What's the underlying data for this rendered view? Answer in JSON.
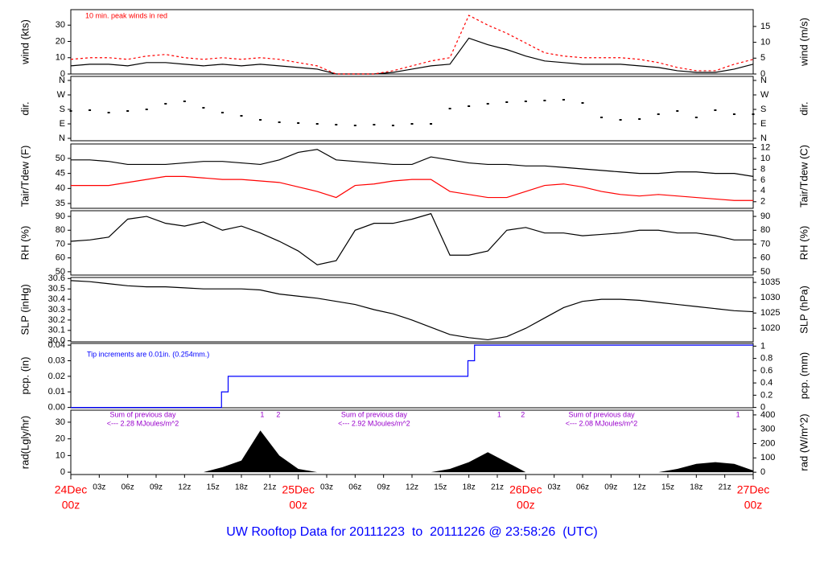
{
  "title": "UW Rooftop Data for 20111223  to  20111226 @ 23:58:26  (UTC)",
  "x": [
    0,
    2,
    4,
    6,
    8,
    10,
    12,
    14,
    16,
    18,
    20,
    22,
    24,
    26,
    28,
    30,
    32,
    34,
    36,
    38,
    40,
    42,
    44,
    46,
    48,
    50,
    52,
    54,
    56,
    58,
    60,
    62,
    64,
    66,
    68,
    70,
    72
  ],
  "xlim": [
    0,
    72
  ],
  "xticks": [
    {
      "value": 3,
      "label": "03z"
    },
    {
      "value": 6,
      "label": "06z"
    },
    {
      "value": 9,
      "label": "09z"
    },
    {
      "value": 12,
      "label": "12z"
    },
    {
      "value": 15,
      "label": "15z"
    },
    {
      "value": 18,
      "label": "18z"
    },
    {
      "value": 21,
      "label": "21z"
    },
    {
      "value": 27,
      "label": "03z"
    },
    {
      "value": 30,
      "label": "06z"
    },
    {
      "value": 33,
      "label": "09z"
    },
    {
      "value": 36,
      "label": "12z"
    },
    {
      "value": 39,
      "label": "15z"
    },
    {
      "value": 42,
      "label": "18z"
    },
    {
      "value": 45,
      "label": "21z"
    },
    {
      "value": 51,
      "label": "03z"
    },
    {
      "value": 54,
      "label": "06z"
    },
    {
      "value": 57,
      "label": "09z"
    },
    {
      "value": 60,
      "label": "12z"
    },
    {
      "value": 63,
      "label": "15z"
    },
    {
      "value": 66,
      "label": "18z"
    },
    {
      "value": 69,
      "label": "21z"
    }
  ],
  "day_labels": [
    {
      "value": 0,
      "date": "24Dec",
      "time": "00z"
    },
    {
      "value": 24,
      "date": "25Dec",
      "time": "00z"
    },
    {
      "value": 48,
      "date": "26Dec",
      "time": "00z"
    },
    {
      "value": 72,
      "date": "27Dec",
      "time": "00z"
    }
  ],
  "chart_data": [
    {
      "type": "line",
      "ylabel": "wind (kts)",
      "y2label": "wind (m/s)",
      "annotation": "10 min. peak winds in red",
      "ylim": [
        0,
        39.5
      ],
      "yticks": [
        0,
        10,
        20,
        30
      ],
      "y2lim": [
        0,
        20.3
      ],
      "y2ticks": [
        0,
        5,
        10,
        15
      ],
      "series": [
        {
          "name": "wind",
          "color": "#000000",
          "values": [
            5,
            6,
            6,
            5,
            7,
            7,
            6,
            5,
            6,
            5,
            6,
            5,
            4,
            3,
            0,
            0,
            0,
            1,
            3,
            5,
            6,
            22,
            18,
            15,
            11,
            8,
            7,
            6,
            6,
            6,
            5,
            4,
            2,
            1,
            1,
            3,
            6
          ]
        },
        {
          "name": "peak",
          "color": "#ff0000",
          "values": [
            9,
            10,
            10,
            9,
            11,
            12,
            10,
            9,
            10,
            9,
            10,
            9,
            7,
            5,
            0,
            0,
            0,
            2,
            5,
            8,
            10,
            36,
            30,
            25,
            19,
            13,
            11,
            10,
            10,
            10,
            9,
            7,
            4,
            2,
            2,
            6,
            9
          ]
        }
      ]
    },
    {
      "type": "scatter",
      "ylabel": "dir.",
      "y2label": "dir.",
      "ylim": [
        -15,
        385
      ],
      "yticks": [
        {
          "value": 0,
          "label": "N"
        },
        {
          "value": 90,
          "label": "E"
        },
        {
          "value": 180,
          "label": "S"
        },
        {
          "value": 270,
          "label": "W"
        },
        {
          "value": 360,
          "label": "N"
        }
      ],
      "y2lim": [
        -15,
        385
      ],
      "y2ticks": [
        {
          "value": 0,
          "label": "N"
        },
        {
          "value": 90,
          "label": "E"
        },
        {
          "value": 180,
          "label": "S"
        },
        {
          "value": 270,
          "label": "W"
        },
        {
          "value": 360,
          "label": "N"
        }
      ],
      "series": [
        {
          "name": "dir",
          "color": "#000000",
          "values": [
            170,
            175,
            160,
            170,
            180,
            215,
            230,
            190,
            160,
            140,
            115,
            100,
            95,
            90,
            85,
            80,
            85,
            80,
            90,
            90,
            185,
            200,
            215,
            225,
            230,
            235,
            240,
            220,
            130,
            115,
            120,
            150,
            170,
            130,
            175,
            150,
            150
          ]
        }
      ]
    },
    {
      "type": "line",
      "ylabel": "Tair/Tdew (F)",
      "y2label": "Tair/Tdew (C)",
      "ylim": [
        33.4,
        54.8
      ],
      "yticks": [
        35,
        40,
        45,
        50
      ],
      "y2lim": [
        0.78,
        12.67
      ],
      "y2ticks": [
        2,
        4,
        6,
        8,
        10,
        12
      ],
      "series": [
        {
          "name": "Tair",
          "color": "#000000",
          "values": [
            49.5,
            49.5,
            49,
            48,
            48,
            48,
            48.5,
            49,
            49,
            48.5,
            48,
            49.5,
            52,
            53,
            49.5,
            49,
            48.5,
            48,
            48,
            50.5,
            49.5,
            48.5,
            48,
            48,
            47.5,
            47.5,
            47,
            46.5,
            46,
            45.5,
            45,
            45,
            45.5,
            45.5,
            45,
            45,
            44
          ]
        },
        {
          "name": "Tdew",
          "color": "#ff0000",
          "values": [
            41,
            41,
            41,
            42,
            43,
            44,
            44,
            43.5,
            43,
            43,
            42.5,
            42,
            40.5,
            39,
            37,
            41,
            41.5,
            42.5,
            43,
            43,
            39,
            38,
            37,
            37,
            39,
            41,
            41.5,
            40.5,
            39,
            38,
            37.5,
            38,
            37.5,
            37,
            36.5,
            36,
            36
          ]
        }
      ]
    },
    {
      "type": "line",
      "ylabel": "RH (%)",
      "y2label": "RH (%)",
      "ylim": [
        47.6,
        94.1
      ],
      "yticks": [
        50,
        60,
        70,
        80,
        90
      ],
      "y2lim": [
        47.6,
        94.1
      ],
      "y2ticks": [
        50,
        60,
        70,
        80,
        90
      ],
      "series": [
        {
          "name": "RH",
          "color": "#000000",
          "values": [
            72,
            73,
            75,
            88,
            90,
            85,
            83,
            86,
            80,
            83,
            78,
            72,
            65,
            55,
            58,
            80,
            85,
            85,
            88,
            92,
            62,
            62,
            65,
            80,
            82,
            78,
            78,
            76,
            77,
            78,
            80,
            80,
            78,
            78,
            76,
            73,
            73
          ]
        }
      ]
    },
    {
      "type": "line",
      "ylabel": "SLP (inHg)",
      "y2label": "SLP (hPa)",
      "ylim": [
        29.99,
        30.61
      ],
      "yticks": [
        {
          "value": 30,
          "label": "30.0"
        },
        30.1,
        30.2,
        30.3,
        30.4,
        30.5,
        30.6
      ],
      "y2lim": [
        1015.6,
        1036.6
      ],
      "y2ticks": [
        1020,
        1025,
        1030,
        1035
      ],
      "series": [
        {
          "name": "SLP",
          "color": "#000000",
          "values": [
            30.58,
            30.57,
            30.55,
            30.53,
            30.52,
            30.52,
            30.51,
            30.5,
            30.5,
            30.5,
            30.49,
            30.45,
            30.43,
            30.41,
            30.38,
            30.35,
            30.3,
            30.26,
            30.2,
            30.13,
            30.06,
            30.03,
            30.01,
            30.04,
            30.12,
            30.22,
            30.32,
            30.38,
            30.4,
            30.4,
            30.39,
            30.37,
            30.35,
            30.33,
            30.31,
            30.29,
            30.28
          ]
        }
      ]
    },
    {
      "type": "step",
      "ylabel": "pcp. (in)",
      "y2label": "pcp. (mm)",
      "annotation": "Tip increments are 0.01in. (0.254mm.)",
      "ylim": [
        -0.0002,
        0.0411
      ],
      "yticks": [
        {
          "value": 0,
          "label": "0.00"
        },
        0.01,
        0.02,
        0.03,
        0.04
      ],
      "y2lim": [
        -0.005,
        1.044
      ],
      "y2ticks": [
        0,
        0.2,
        0.4,
        0.6,
        0.8,
        1
      ],
      "x": [
        0,
        15.9,
        16.6,
        41.9,
        42.6,
        72
      ],
      "series": [
        {
          "name": "pcp",
          "color": "#0000ff",
          "values": [
            0,
            0.01,
            0.02,
            0.03,
            0.04,
            0.04
          ]
        }
      ]
    },
    {
      "type": "area",
      "ylabel": "rad(Lgly/hr)",
      "y2label": "rad (W/m^2)",
      "ylim": [
        -1.4,
        37.2
      ],
      "yticks": [
        0,
        10,
        20,
        30
      ],
      "y2lim": [
        -16,
        433
      ],
      "y2ticks": [
        0,
        100,
        200,
        300,
        400
      ],
      "notes": [
        {
          "x": 7.6,
          "line1": "Sum of previous day",
          "line2": "<--- 2.28 MJoules/m^2"
        },
        {
          "x": 32,
          "line1": "Sum of previous day",
          "line2": "<--- 2.92 MJoules/m^2"
        },
        {
          "x": 56,
          "line1": "Sum of previous day",
          "line2": "<--- 2.08 MJoules/m^2"
        }
      ],
      "markers": [
        {
          "x": 20.2,
          "text": "1"
        },
        {
          "x": 21.9,
          "text": "2"
        },
        {
          "x": 45.2,
          "text": "1"
        },
        {
          "x": 47.7,
          "text": "2"
        },
        {
          "x": 70.4,
          "text": "1"
        }
      ],
      "series": [
        {
          "name": "rad",
          "color": "#000000",
          "values": [
            0,
            0,
            0,
            0,
            0,
            0,
            0,
            0,
            3,
            7,
            25,
            10,
            2,
            0,
            0,
            0,
            0,
            0,
            0,
            0,
            2,
            6,
            12,
            6,
            0,
            0,
            0,
            0,
            0,
            0,
            0,
            0,
            2,
            5,
            6,
            5,
            1
          ]
        }
      ]
    }
  ]
}
